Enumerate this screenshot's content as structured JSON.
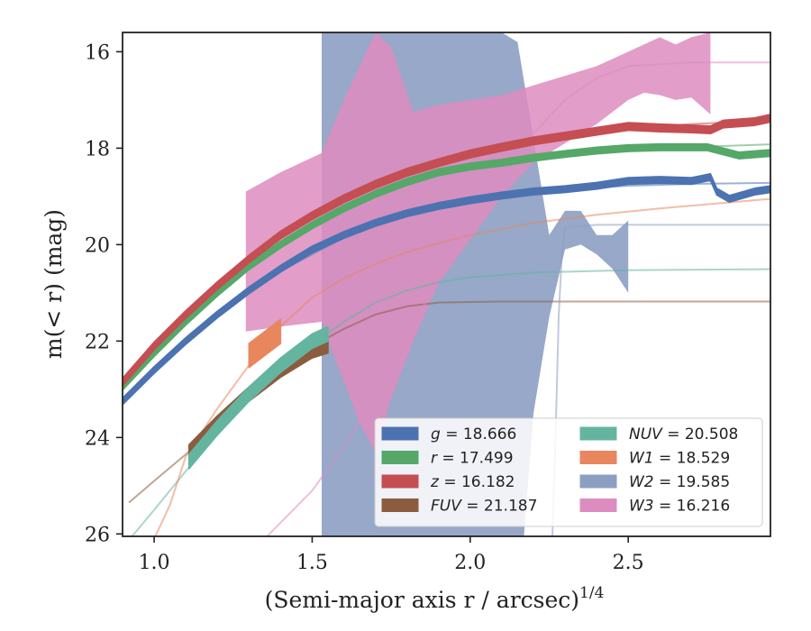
{
  "chart_data": {
    "type": "line",
    "xlabel_main": "(Semi-major axis r / arcsec)",
    "xlabel_sup": "1/4",
    "ylabel": "m(< r) (mag)",
    "xlim": [
      0.9,
      2.95
    ],
    "ylim": [
      26.05,
      15.6
    ],
    "y_inverted": true,
    "xticks": [
      "1.0",
      "1.5",
      "2.0",
      "2.5"
    ],
    "xtick_values": [
      1.0,
      1.5,
      2.0,
      2.5
    ],
    "yticks": [
      "16",
      "18",
      "20",
      "22",
      "24",
      "26"
    ],
    "ytick_values": [
      16,
      18,
      20,
      22,
      24,
      26
    ],
    "grid": false,
    "legend_position": "lower-right",
    "series": [
      {
        "name": "g",
        "label": "g = 18.666",
        "band": "g",
        "value": "18.666",
        "color": "#4c72b0",
        "model": [
          [
            0.9,
            23.25
          ],
          [
            1.0,
            22.6
          ],
          [
            1.1,
            22.0
          ],
          [
            1.2,
            21.5
          ],
          [
            1.3,
            21.0
          ],
          [
            1.4,
            20.55
          ],
          [
            1.5,
            20.2
          ],
          [
            1.6,
            19.85
          ],
          [
            1.7,
            19.6
          ],
          [
            1.8,
            19.4
          ],
          [
            1.9,
            19.25
          ],
          [
            2.0,
            19.1
          ],
          [
            2.1,
            19.0
          ],
          [
            2.2,
            18.9
          ],
          [
            2.3,
            18.85
          ],
          [
            2.5,
            18.78
          ],
          [
            2.7,
            18.74
          ],
          [
            2.95,
            18.72
          ]
        ],
        "observed": [
          [
            0.9,
            23.25
          ],
          [
            1.0,
            22.6
          ],
          [
            1.1,
            22.0
          ],
          [
            1.2,
            21.45
          ],
          [
            1.3,
            20.95
          ],
          [
            1.4,
            20.5
          ],
          [
            1.5,
            20.1
          ],
          [
            1.6,
            19.8
          ],
          [
            1.7,
            19.55
          ],
          [
            1.8,
            19.35
          ],
          [
            1.9,
            19.2
          ],
          [
            2.0,
            19.08
          ],
          [
            2.1,
            18.98
          ],
          [
            2.2,
            18.9
          ],
          [
            2.3,
            18.85
          ],
          [
            2.4,
            18.78
          ],
          [
            2.5,
            18.68
          ],
          [
            2.6,
            18.66
          ],
          [
            2.7,
            18.68
          ],
          [
            2.76,
            18.6
          ],
          [
            2.78,
            18.9
          ],
          [
            2.82,
            19.05
          ],
          [
            2.9,
            18.9
          ],
          [
            2.95,
            18.85
          ]
        ],
        "band_halfwidth": 0.07
      },
      {
        "name": "r",
        "label": "r = 17.499",
        "band": "r",
        "value": "17.499",
        "color": "#55a868",
        "model": [
          [
            0.9,
            22.9
          ],
          [
            1.0,
            22.2
          ],
          [
            1.1,
            21.6
          ],
          [
            1.2,
            21.05
          ],
          [
            1.3,
            20.5
          ],
          [
            1.4,
            20.05
          ],
          [
            1.5,
            19.65
          ],
          [
            1.6,
            19.3
          ],
          [
            1.7,
            19.0
          ],
          [
            1.8,
            18.75
          ],
          [
            1.9,
            18.55
          ],
          [
            2.0,
            18.4
          ],
          [
            2.1,
            18.3
          ],
          [
            2.2,
            18.2
          ],
          [
            2.3,
            18.12
          ],
          [
            2.5,
            18.05
          ],
          [
            2.7,
            17.98
          ],
          [
            2.95,
            17.92
          ]
        ],
        "observed": [
          [
            0.9,
            22.95
          ],
          [
            1.0,
            22.25
          ],
          [
            1.1,
            21.6
          ],
          [
            1.2,
            21.0
          ],
          [
            1.3,
            20.45
          ],
          [
            1.4,
            20.0
          ],
          [
            1.5,
            19.6
          ],
          [
            1.6,
            19.25
          ],
          [
            1.7,
            18.95
          ],
          [
            1.8,
            18.7
          ],
          [
            1.9,
            18.5
          ],
          [
            2.0,
            18.38
          ],
          [
            2.1,
            18.3
          ],
          [
            2.2,
            18.2
          ],
          [
            2.3,
            18.12
          ],
          [
            2.4,
            18.05
          ],
          [
            2.5,
            18.0
          ],
          [
            2.6,
            17.98
          ],
          [
            2.75,
            17.98
          ],
          [
            2.85,
            18.15
          ],
          [
            2.95,
            18.1
          ]
        ],
        "band_halfwidth": 0.07
      },
      {
        "name": "z",
        "label": "z = 16.182",
        "band": "z",
        "value": "16.182",
        "color": "#c44e52",
        "model": [
          [
            0.9,
            22.85
          ],
          [
            1.0,
            22.1
          ],
          [
            1.1,
            21.45
          ],
          [
            1.2,
            20.85
          ],
          [
            1.3,
            20.35
          ],
          [
            1.4,
            19.85
          ],
          [
            1.5,
            19.45
          ],
          [
            1.6,
            19.1
          ],
          [
            1.7,
            18.8
          ],
          [
            1.8,
            18.55
          ],
          [
            1.9,
            18.35
          ],
          [
            2.0,
            18.15
          ],
          [
            2.1,
            18.0
          ],
          [
            2.2,
            17.85
          ],
          [
            2.3,
            17.75
          ],
          [
            2.5,
            17.6
          ],
          [
            2.7,
            17.5
          ],
          [
            2.95,
            17.42
          ]
        ],
        "observed": [
          [
            0.9,
            22.85
          ],
          [
            1.0,
            22.1
          ],
          [
            1.1,
            21.45
          ],
          [
            1.2,
            20.85
          ],
          [
            1.3,
            20.3
          ],
          [
            1.4,
            19.8
          ],
          [
            1.5,
            19.4
          ],
          [
            1.6,
            19.05
          ],
          [
            1.7,
            18.75
          ],
          [
            1.8,
            18.5
          ],
          [
            1.9,
            18.3
          ],
          [
            2.0,
            18.12
          ],
          [
            2.1,
            17.98
          ],
          [
            2.2,
            17.85
          ],
          [
            2.3,
            17.75
          ],
          [
            2.4,
            17.65
          ],
          [
            2.5,
            17.55
          ],
          [
            2.6,
            17.58
          ],
          [
            2.7,
            17.6
          ],
          [
            2.76,
            17.62
          ],
          [
            2.8,
            17.5
          ],
          [
            2.9,
            17.45
          ],
          [
            2.95,
            17.38
          ]
        ],
        "band_halfwidth": 0.08
      },
      {
        "name": "FUV",
        "label": "FUV = 21.187",
        "band": "FUV",
        "value": "21.187",
        "color": "#8c5c3f",
        "model": [
          [
            0.92,
            25.35
          ],
          [
            1.0,
            24.9
          ],
          [
            1.1,
            24.35
          ],
          [
            1.2,
            23.75
          ],
          [
            1.3,
            23.15
          ],
          [
            1.4,
            22.6
          ],
          [
            1.5,
            22.1
          ],
          [
            1.6,
            21.75
          ],
          [
            1.7,
            21.45
          ],
          [
            1.8,
            21.28
          ],
          [
            1.9,
            21.2
          ],
          [
            2.1,
            21.18
          ],
          [
            2.5,
            21.18
          ],
          [
            2.95,
            21.18
          ]
        ],
        "observed": [
          [
            1.11,
            24.3
          ],
          [
            1.2,
            23.7
          ],
          [
            1.3,
            23.1
          ],
          [
            1.4,
            22.6
          ],
          [
            1.5,
            22.2
          ],
          [
            1.55,
            22.1
          ]
        ],
        "band_halfwidth": 0.15
      },
      {
        "name": "NUV",
        "label": "NUV = 20.508",
        "band": "NUV",
        "value": "20.508",
        "color": "#64b5a0",
        "model": [
          [
            0.93,
            26.05
          ],
          [
            1.0,
            25.5
          ],
          [
            1.1,
            24.7
          ],
          [
            1.2,
            23.9
          ],
          [
            1.3,
            23.2
          ],
          [
            1.4,
            22.6
          ],
          [
            1.5,
            22.05
          ],
          [
            1.6,
            21.6
          ],
          [
            1.7,
            21.2
          ],
          [
            1.8,
            20.95
          ],
          [
            1.9,
            20.78
          ],
          [
            2.0,
            20.68
          ],
          [
            2.2,
            20.58
          ],
          [
            2.5,
            20.53
          ],
          [
            2.95,
            20.51
          ]
        ],
        "observed": [
          [
            1.11,
            24.5
          ],
          [
            1.2,
            23.8
          ],
          [
            1.3,
            23.1
          ],
          [
            1.4,
            22.5
          ],
          [
            1.5,
            22.0
          ],
          [
            1.55,
            21.85
          ]
        ],
        "band_halfwidth": 0.15
      },
      {
        "name": "W1",
        "label": "W1 = 18.529",
        "band": "W1",
        "value": "18.529",
        "color": "#e8865e",
        "model": [
          [
            1.0,
            26.1
          ],
          [
            1.05,
            25.4
          ],
          [
            1.1,
            24.4
          ],
          [
            1.2,
            23.4
          ],
          [
            1.3,
            22.5
          ],
          [
            1.4,
            21.7
          ],
          [
            1.5,
            21.1
          ],
          [
            1.6,
            20.7
          ],
          [
            1.7,
            20.4
          ],
          [
            1.8,
            20.15
          ],
          [
            2.0,
            19.8
          ],
          [
            2.2,
            19.55
          ],
          [
            2.4,
            19.38
          ],
          [
            2.6,
            19.25
          ],
          [
            2.95,
            19.05
          ]
        ],
        "observed": [
          [
            1.3,
            22.3
          ],
          [
            1.35,
            22.05
          ],
          [
            1.4,
            21.8
          ]
        ],
        "band_halfwidth": 0.25
      },
      {
        "name": "W2",
        "label": "W2 = 19.585",
        "band": "W2",
        "value": "19.585",
        "color": "#8c9fc3",
        "model": [
          [
            2.26,
            26.05
          ],
          [
            2.27,
            24.0
          ],
          [
            2.28,
            21.5
          ],
          [
            2.29,
            20.2
          ],
          [
            2.3,
            19.65
          ],
          [
            2.4,
            19.59
          ],
          [
            2.95,
            19.59
          ]
        ],
        "fill_upper": [
          [
            1.53,
            15.6
          ],
          [
            1.58,
            15.6
          ],
          [
            1.65,
            15.6
          ],
          [
            1.7,
            15.6
          ],
          [
            1.8,
            15.6
          ],
          [
            1.9,
            15.6
          ],
          [
            2.0,
            15.6
          ],
          [
            2.1,
            15.6
          ],
          [
            2.15,
            15.8
          ],
          [
            2.2,
            17.8
          ],
          [
            2.25,
            19.8
          ],
          [
            2.3,
            19.3
          ],
          [
            2.35,
            19.3
          ],
          [
            2.4,
            19.8
          ],
          [
            2.45,
            19.8
          ],
          [
            2.5,
            19.5
          ]
        ],
        "fill_lower": [
          [
            1.53,
            26.05
          ],
          [
            1.6,
            26.05
          ],
          [
            1.7,
            26.05
          ],
          [
            1.8,
            26.05
          ],
          [
            1.9,
            26.05
          ],
          [
            2.0,
            26.05
          ],
          [
            2.1,
            26.05
          ],
          [
            2.17,
            26.05
          ],
          [
            2.2,
            23.5
          ],
          [
            2.25,
            21.5
          ],
          [
            2.3,
            20.1
          ],
          [
            2.35,
            20.0
          ],
          [
            2.4,
            20.2
          ],
          [
            2.45,
            20.5
          ],
          [
            2.5,
            21.0
          ]
        ]
      },
      {
        "name": "W3",
        "label": "W3 = 16.216",
        "band": "W3",
        "value": "16.216",
        "color": "#dd8cc0",
        "model": [
          [
            1.35,
            26.1
          ],
          [
            1.5,
            25.1
          ],
          [
            1.6,
            24.2
          ],
          [
            1.7,
            23.1
          ],
          [
            1.8,
            21.9
          ],
          [
            1.9,
            20.7
          ],
          [
            2.0,
            19.5
          ],
          [
            2.1,
            18.5
          ],
          [
            2.2,
            17.7
          ],
          [
            2.3,
            17.0
          ],
          [
            2.4,
            16.55
          ],
          [
            2.5,
            16.3
          ],
          [
            2.7,
            16.22
          ],
          [
            2.95,
            16.22
          ]
        ],
        "fill_upper": [
          [
            1.29,
            18.9
          ],
          [
            1.4,
            18.5
          ],
          [
            1.53,
            18.1
          ],
          [
            1.6,
            17.0
          ],
          [
            1.7,
            15.6
          ],
          [
            1.75,
            15.9
          ],
          [
            1.82,
            17.25
          ],
          [
            1.9,
            17.1
          ],
          [
            2.0,
            17.0
          ],
          [
            2.1,
            16.9
          ],
          [
            2.2,
            16.7
          ],
          [
            2.3,
            16.5
          ],
          [
            2.4,
            16.3
          ],
          [
            2.5,
            16.0
          ],
          [
            2.6,
            15.7
          ],
          [
            2.65,
            15.85
          ],
          [
            2.7,
            15.7
          ],
          [
            2.76,
            15.6
          ]
        ],
        "fill_lower": [
          [
            1.29,
            21.8
          ],
          [
            1.4,
            21.7
          ],
          [
            1.53,
            21.6
          ],
          [
            1.58,
            22.5
          ],
          [
            1.65,
            23.7
          ],
          [
            1.7,
            24.3
          ],
          [
            1.75,
            23.2
          ],
          [
            1.82,
            22.0
          ],
          [
            1.9,
            20.8
          ],
          [
            2.0,
            19.9
          ],
          [
            2.1,
            19.0
          ],
          [
            2.2,
            18.3
          ],
          [
            2.3,
            17.9
          ],
          [
            2.4,
            17.5
          ],
          [
            2.5,
            17.0
          ],
          [
            2.55,
            16.85
          ],
          [
            2.6,
            16.9
          ],
          [
            2.65,
            17.0
          ],
          [
            2.7,
            16.95
          ],
          [
            2.76,
            17.3
          ]
        ]
      }
    ],
    "legend": {
      "columns": [
        [
          {
            "sym": "g",
            "italic": true,
            "val": " = 18.666",
            "color": "#4c72b0"
          },
          {
            "sym": "r",
            "italic": true,
            "val": " = 17.499",
            "color": "#55a868"
          },
          {
            "sym": "z",
            "italic": true,
            "val": " = 16.182",
            "color": "#c44e52"
          },
          {
            "sym": "FUV",
            "italic": true,
            "val": " = 21.187",
            "color": "#8c5c3f"
          }
        ],
        [
          {
            "sym": "NUV",
            "italic": true,
            "val": " = 20.508",
            "color": "#64b5a0"
          },
          {
            "sym": "W1",
            "italic": true,
            "val": " = 18.529",
            "color": "#e8865e"
          },
          {
            "sym": "W2",
            "italic": true,
            "val": " = 19.585",
            "color": "#8c9fc3"
          },
          {
            "sym": "W3",
            "italic": true,
            "val": " = 16.216",
            "color": "#dd8cc0"
          }
        ]
      ]
    }
  }
}
